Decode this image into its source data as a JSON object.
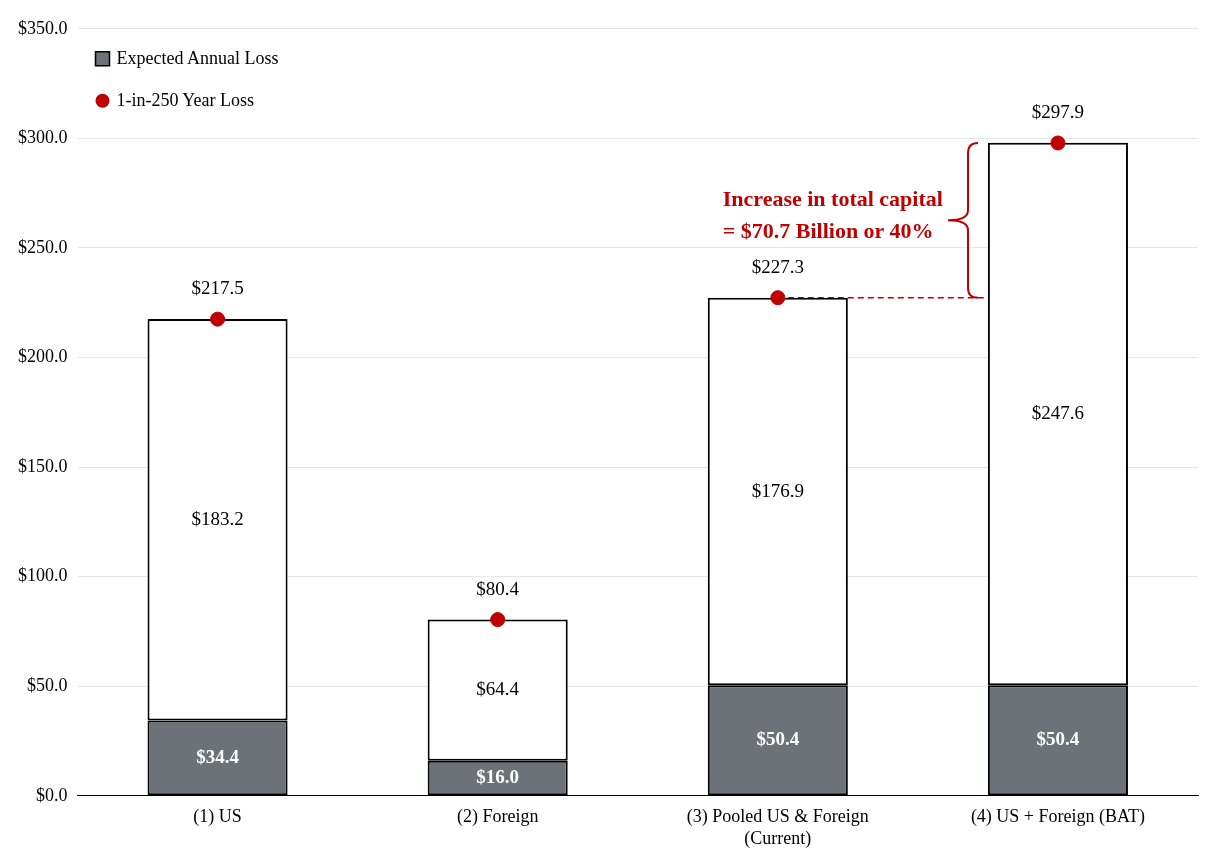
{
  "chart_data": {
    "type": "bar",
    "stacked": true,
    "categories": [
      "(1) US",
      "(2) Foreign",
      "(3) Pooled US & Foreign\n(Current)",
      "(4) US + Foreign (BAT)"
    ],
    "series": [
      {
        "name": "Expected Annual Loss",
        "color": "#6d7278",
        "values": [
          34.4,
          16.0,
          50.4,
          50.4
        ],
        "value_labels": [
          "$34.4",
          "$16.0",
          "$50.4",
          "$50.4"
        ]
      },
      {
        "color": "#ffffff",
        "values": [
          183.2,
          64.4,
          176.9,
          247.6
        ],
        "value_labels": [
          "$183.2",
          "$64.4",
          "$176.9",
          "$247.6"
        ]
      },
      {
        "name": "1-in-250 Year Loss",
        "type": "scatter",
        "color": "#c00000",
        "x": [
          "(1) US",
          "(2) Foreign",
          "(3) Pooled US & Foreign\n(Current)",
          "(4) US + Foreign (BAT)"
        ],
        "values": [
          217.5,
          80.4,
          227.3,
          297.9
        ],
        "value_labels": [
          "$217.5",
          "$80.4",
          "$227.3",
          "$297.9"
        ]
      }
    ],
    "ylim": [
      0,
      350
    ],
    "yticks": [
      {
        "value": 0,
        "label": "$0.0"
      },
      {
        "value": 50,
        "label": "$50.0"
      },
      {
        "value": 100,
        "label": "$100.0"
      },
      {
        "value": 150,
        "label": "$150.0"
      },
      {
        "value": 200,
        "label": "$200.0"
      },
      {
        "value": 250,
        "label": "$250.0"
      },
      {
        "value": 300,
        "label": "$300.0"
      },
      {
        "value": 350,
        "label": "$350.0"
      }
    ],
    "grid": "y",
    "legend": "top left",
    "marker": "circle",
    "ref_lines": [
      {
        "axis": "y",
        "value": 227.3,
        "color": "#c00000",
        "line_style": "dashed"
      }
    ],
    "annotations": [
      "Increase in total capital\n= $70.7 Billion or 40%"
    ]
  }
}
